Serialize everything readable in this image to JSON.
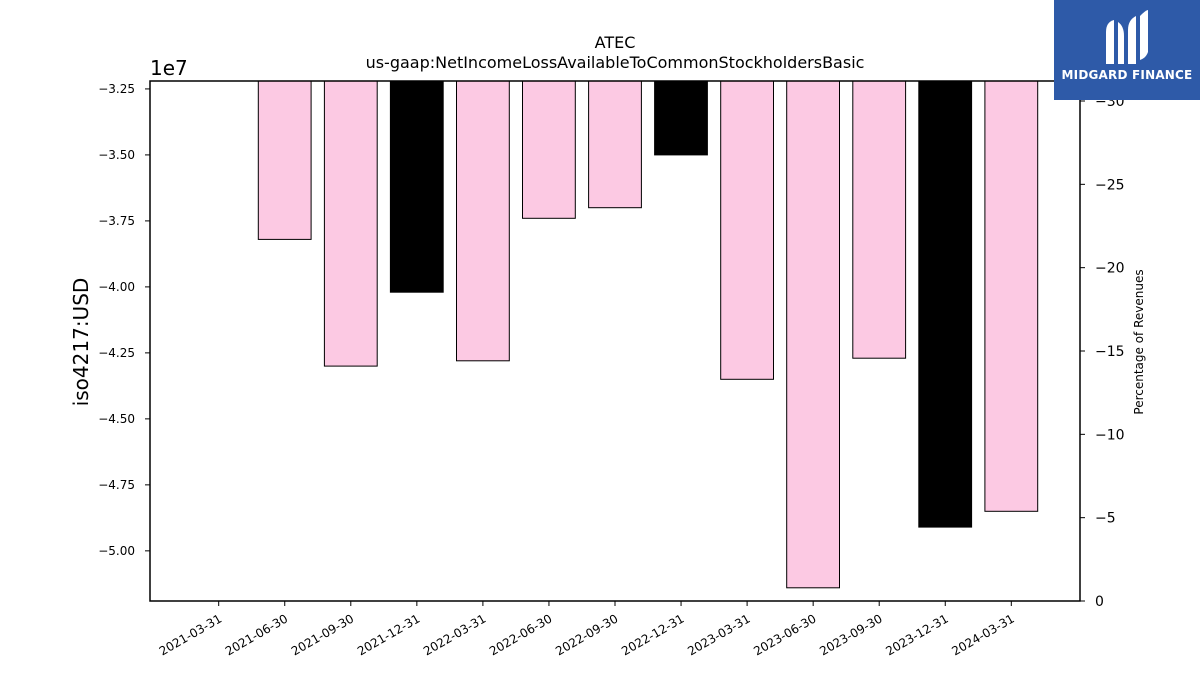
{
  "chart_data": {
    "type": "bar",
    "title": "ATEC",
    "subtitle": "us-gaap:NetIncomeLossAvailableToCommonStockholdersBasic",
    "ylabel": "iso4217:USD",
    "y_exponent_label": "1e7",
    "y2label": "Percentage of Revenues",
    "ylim": [
      -51.9,
      -32.2
    ],
    "y_ticks": [
      -32.5,
      -35.0,
      -37.5,
      -40.0,
      -42.5,
      -45.0,
      -47.5,
      -50.0
    ],
    "y_tick_labels": [
      "−3.25",
      "−3.50",
      "−3.75",
      "−4.00",
      "−4.25",
      "−4.50",
      "−4.75",
      "−5.00"
    ],
    "y2lim": [
      0,
      -31.2
    ],
    "y2_ticks": [
      0,
      -5,
      -10,
      -15,
      -20,
      -25,
      -30
    ],
    "y2_tick_labels": [
      "0",
      "−5",
      "−10",
      "−15",
      "−20",
      "−25",
      "−30"
    ],
    "categories": [
      "2021-03-31",
      "2021-06-30",
      "2021-09-30",
      "2021-12-31",
      "2022-03-31",
      "2022-06-30",
      "2022-09-30",
      "2022-12-31",
      "2023-03-31",
      "2023-06-30",
      "2023-09-30",
      "2023-12-31",
      "2024-03-31"
    ],
    "values_millions": [
      null,
      -38.2,
      -43.0,
      -40.2,
      -42.8,
      -37.4,
      -37.0,
      -35.0,
      -43.5,
      -51.4,
      -42.7,
      -49.1,
      -48.5
    ],
    "bar_colors": [
      "#fcc9e3",
      "#fcc9e3",
      "#fcc9e3",
      "#000000",
      "#fcc9e3",
      "#fcc9e3",
      "#fcc9e3",
      "#000000",
      "#fcc9e3",
      "#fcc9e3",
      "#fcc9e3",
      "#000000",
      "#fcc9e3"
    ],
    "grid": false,
    "legend": "none"
  },
  "logo": {
    "text": "MIDGARD FINANCE",
    "icon": "midgard-m-logo-icon",
    "background": "#2e5aa8"
  }
}
